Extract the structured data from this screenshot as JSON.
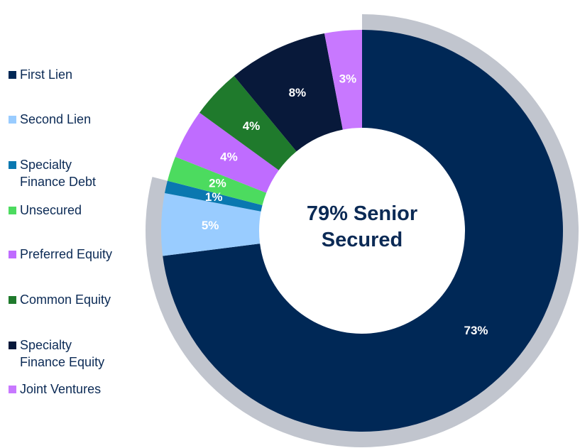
{
  "chart_data": {
    "type": "donut",
    "categories": [
      "First Lien",
      "Second Lien",
      "Specialty Finance Debt",
      "Unsecured",
      "Preferred Equity",
      "Common Equity",
      "Specialty Finance Equity",
      "Joint Ventures"
    ],
    "values": [
      73,
      5,
      1,
      2,
      4,
      4,
      8,
      3
    ],
    "value_labels": [
      "73%",
      "5%",
      "1%",
      "2%",
      "4%",
      "4%",
      "8%",
      "3%"
    ],
    "colors": [
      "#002856",
      "#99ccff",
      "#0a78b0",
      "#4cdb5f",
      "#bf6cff",
      "#1f7a2c",
      "#08193a",
      "#c878ff"
    ],
    "center_label": "79% Senior Secured",
    "outer_ring": {
      "color": "#c1c5ce",
      "spans": 3
    }
  }
}
